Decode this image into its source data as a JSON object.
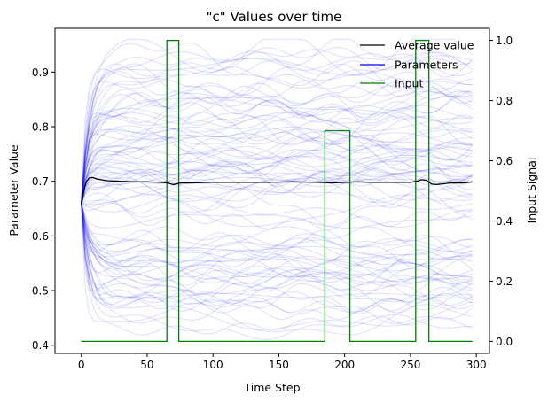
{
  "chart_data": {
    "type": "line",
    "title": "\"c\" Values over time",
    "xlabel": "Time Step",
    "ylabel": "Parameter Value",
    "y2label": "Input Signal",
    "xlim": [
      -20,
      310
    ],
    "ylim": [
      0.385,
      0.98
    ],
    "y2lim": [
      -0.04,
      1.04
    ],
    "xticks": [
      0,
      50,
      100,
      150,
      200,
      250,
      300
    ],
    "yticks": [
      0.4,
      0.5,
      0.6,
      0.7,
      0.8,
      0.9
    ],
    "y2ticks": [
      0.0,
      0.2,
      0.4,
      0.6,
      0.8,
      1.0
    ],
    "legend": {
      "position": "top-right",
      "entries": [
        {
          "label": "Average value",
          "color": "#000000"
        },
        {
          "label": "Parameters",
          "color": "#0000ff"
        },
        {
          "label": "Input",
          "color": "#008000"
        }
      ]
    },
    "parameters": {
      "color": "#0000ff",
      "opacity": 0.12,
      "count": 100,
      "initial_value": 0.66,
      "value_range": [
        0.41,
        0.96
      ],
      "x_range": [
        0,
        297
      ]
    },
    "series": [
      {
        "name": "Average value",
        "axis": "left",
        "color": "#000000",
        "x": [
          0,
          2,
          4,
          6,
          8,
          10,
          12,
          15,
          20,
          30,
          40,
          50,
          60,
          66,
          68,
          70,
          75,
          80,
          100,
          120,
          140,
          160,
          180,
          190,
          200,
          210,
          220,
          240,
          250,
          255,
          258,
          262,
          266,
          270,
          280,
          290,
          297
        ],
        "y": [
          0.655,
          0.685,
          0.7,
          0.706,
          0.707,
          0.706,
          0.704,
          0.703,
          0.701,
          0.7,
          0.699,
          0.699,
          0.698,
          0.697,
          0.695,
          0.694,
          0.697,
          0.697,
          0.698,
          0.698,
          0.698,
          0.699,
          0.698,
          0.697,
          0.698,
          0.699,
          0.698,
          0.698,
          0.698,
          0.7,
          0.703,
          0.702,
          0.695,
          0.694,
          0.697,
          0.697,
          0.699
        ]
      },
      {
        "name": "Input",
        "axis": "right",
        "color": "#008000",
        "x": [
          0,
          65,
          65,
          74,
          74,
          185,
          185,
          204,
          204,
          254,
          254,
          264,
          264,
          297
        ],
        "y": [
          0,
          0,
          1,
          1,
          0,
          0,
          0.7,
          0.7,
          0,
          0,
          1,
          1,
          0,
          0
        ]
      }
    ]
  }
}
